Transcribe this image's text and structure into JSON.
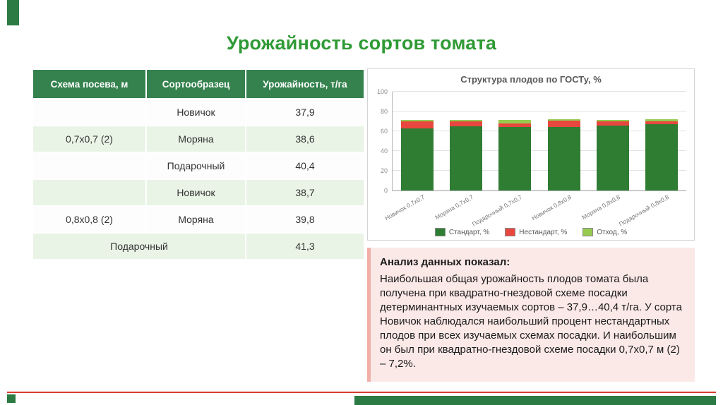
{
  "title": "Урожайность сортов томата",
  "table": {
    "headers": [
      "Схема посева, м",
      "Сортообразец",
      "Урожайность, т/га"
    ],
    "rows": [
      {
        "scheme": "",
        "variety": "Новичок",
        "yield": "37,9"
      },
      {
        "scheme": "0,7х0,7 (2)",
        "variety": "Моряна",
        "yield": "38,6"
      },
      {
        "scheme": "",
        "variety": "Подарочный",
        "yield": "40,4"
      },
      {
        "scheme": "",
        "variety": "Новичок",
        "yield": "38,7"
      },
      {
        "scheme": "0,8х0,8 (2)",
        "variety": "Моряна",
        "yield": "39,8"
      },
      {
        "scheme": "",
        "variety": "Подарочный",
        "yield": "41,3"
      }
    ]
  },
  "chart_data": {
    "type": "bar",
    "stacked": true,
    "title": "Структура плодов по ГОСТу, %",
    "categories": [
      "Новичок 0,7х0,7",
      "Моряна 0,7х0,7",
      "Подарочный 0,7х0,7",
      "Новичок 0,8х0,8",
      "Моряна 0,8х0,8",
      "Подарочный 0,8х0,8"
    ],
    "series": [
      {
        "name": "Стандарт, %",
        "color": "#2e7d32",
        "values": [
          63,
          65,
          64,
          64,
          65.5,
          67
        ]
      },
      {
        "name": "Нестандарт, %",
        "color": "#e8473f",
        "values": [
          7.2,
          5,
          4,
          6.5,
          4.5,
          3
        ]
      },
      {
        "name": "Отход, %",
        "color": "#97ca50",
        "values": [
          1.5,
          1.5,
          3.5,
          1.5,
          1.5,
          2
        ]
      }
    ],
    "ylim": [
      0,
      100
    ],
    "yticks": [
      0,
      20,
      40,
      60,
      80,
      100
    ],
    "grid": true,
    "legend_position": "bottom"
  },
  "analysis": {
    "heading": "Анализ данных показал:",
    "body": "Наибольшая общая урожайность плодов томата была получена при квадратно-гнездовой схеме посадки детерминантных изучаемых сортов – 37,9…40,4 т/га. У сорта Новичок наблюдался наибольший процент нестандартных плодов при всех изучаемых схемах посадки. И наибольшим он был при квадратно-гнездовой схеме посадки 0,7х0,7 м (2) – 7,2%."
  },
  "colors": {
    "title_green": "#2f9a35",
    "table_header_bg": "#35824e",
    "table_row_alt_bg": "#e9f4e6",
    "accent_green": "#2c7a44",
    "accent_red": "#d63c30",
    "analysis_bg": "#fbe9e7",
    "analysis_border": "#f0b0a8"
  }
}
